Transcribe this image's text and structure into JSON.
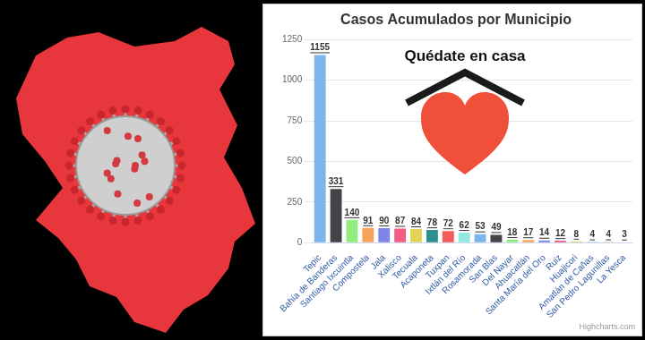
{
  "chart_data": {
    "type": "bar",
    "title": "Casos Acumulados por Municipio",
    "annotations": [
      "Quédate en casa"
    ],
    "credits": "Highcharts.com",
    "categories": [
      "Tepic",
      "Bahía de Banderas",
      "Santiago Ixcuintla",
      "Compostela",
      "Jala",
      "Xalisco",
      "Tecuala",
      "Acaponeta",
      "Tuxpan",
      "Ixtlán del Río",
      "Rosamorada",
      "San Blas",
      "Del Nayar",
      "Ahuacatlán",
      "Santa María del Oro",
      "Ruiz",
      "Huajicori",
      "Amatlán de Cañas",
      "San Pedro Lagunillas",
      "La Yesca"
    ],
    "values": [
      1155,
      331,
      140,
      91,
      90,
      87,
      84,
      78,
      72,
      62,
      53,
      49,
      18,
      17,
      14,
      12,
      8,
      4,
      4,
      3
    ],
    "colors": [
      "#7cb5ec",
      "#434348",
      "#90ed7d",
      "#f7a35c",
      "#8085e9",
      "#f15c80",
      "#e4d354",
      "#2b908f",
      "#f45b5b",
      "#91e8e1",
      "#7cb5ec",
      "#434348",
      "#90ed7d",
      "#f7a35c",
      "#8085e9",
      "#f15c80",
      "#e4d354",
      "#2b908f",
      "#f45b5b",
      "#91e8e1"
    ],
    "ylim": [
      0,
      1250
    ],
    "yticks": [
      0,
      250,
      500,
      750,
      1000,
      1250
    ],
    "grid": true,
    "data_labels": true
  }
}
